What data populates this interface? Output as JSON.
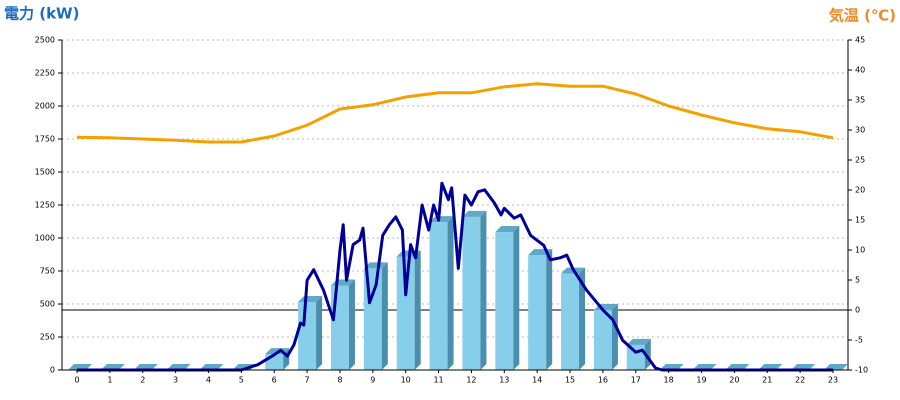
{
  "chart_data": {
    "type": "bar",
    "title": "電力 (kW)",
    "y2_title": "気温 (℃)",
    "categories": [
      "0",
      "1",
      "2",
      "3",
      "4",
      "5",
      "6",
      "7",
      "8",
      "9",
      "10",
      "11",
      "12",
      "13",
      "14",
      "15",
      "16",
      "17",
      "18",
      "19",
      "20",
      "21",
      "22",
      "23"
    ],
    "series": [
      {
        "type": "bar",
        "color": "#87ceeb",
        "values": [
          0,
          0,
          0,
          0,
          0,
          0,
          120,
          515,
          640,
          770,
          860,
          1120,
          1160,
          1045,
          870,
          730,
          455,
          190,
          0,
          0,
          0,
          0,
          0,
          0
        ]
      },
      {
        "type": "line",
        "color": "#000099",
        "x": [
          0,
          5,
          5.5,
          6,
          6.2,
          6.4,
          6.6,
          6.8,
          6.9,
          7,
          7.2,
          7.5,
          7.8,
          8,
          8.1,
          8.2,
          8.4,
          8.6,
          8.7,
          8.9,
          9.1,
          9.3,
          9.5,
          9.7,
          9.9,
          10,
          10.15,
          10.3,
          10.5,
          10.7,
          10.85,
          11,
          11.1,
          11.3,
          11.4,
          11.6,
          11.8,
          12,
          12.2,
          12.4,
          12.7,
          12.9,
          13,
          13.3,
          13.5,
          13.8,
          14.2,
          14.4,
          14.7,
          14.9,
          15.1,
          15.5,
          16,
          16.3,
          16.6,
          17,
          17.2,
          17.6,
          17.8,
          23
        ],
        "values": [
          0,
          0,
          40,
          115,
          150,
          105,
          190,
          355,
          340,
          680,
          760,
          605,
          380,
          910,
          1100,
          680,
          950,
          985,
          1075,
          510,
          645,
          1020,
          1100,
          1160,
          1060,
          570,
          950,
          850,
          1250,
          1060,
          1250,
          1135,
          1415,
          1290,
          1380,
          770,
          1325,
          1250,
          1350,
          1365,
          1265,
          1175,
          1225,
          1150,
          1175,
          1020,
          945,
          835,
          850,
          870,
          760,
          605,
          455,
          380,
          225,
          135,
          150,
          15,
          0,
          0
        ]
      },
      {
        "type": "line",
        "color": "#f5a000",
        "axis": "y2",
        "values": [
          28.8,
          28.7,
          28.5,
          28.3,
          28,
          28,
          29,
          30.8,
          33.5,
          34.2,
          35.5,
          36.2,
          36.2,
          37.2,
          37.7,
          37.3,
          37.3,
          36,
          34,
          32.5,
          31.2,
          30.2,
          29.7,
          28.7
        ]
      }
    ],
    "ylim": [
      0,
      2500
    ],
    "yticks": [
      0,
      250,
      500,
      750,
      1000,
      1250,
      1500,
      1750,
      2000,
      2250,
      2500
    ],
    "y2lim": [
      -10,
      45
    ],
    "y2ticks": [
      -10,
      -5,
      0,
      5,
      10,
      15,
      20,
      25,
      30,
      35,
      40,
      45
    ],
    "grid": true
  }
}
